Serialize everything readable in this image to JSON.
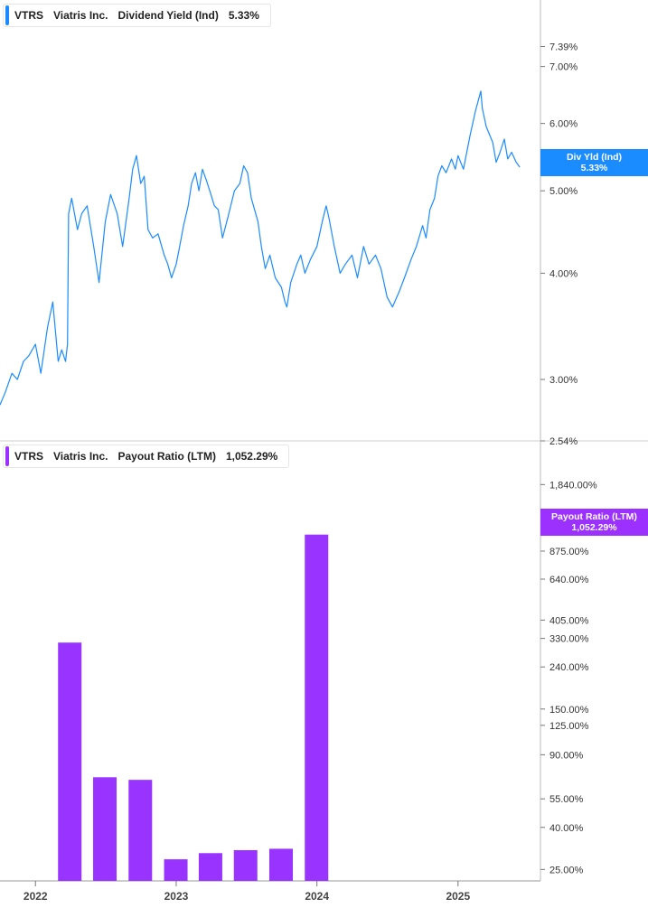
{
  "legend_top": {
    "ticker": "VTRS",
    "company": "Viatris Inc.",
    "metric": "Dividend Yield (Ind)",
    "value": "5.33%",
    "color": "#1a8cff"
  },
  "legend_bottom": {
    "ticker": "VTRS",
    "company": "Viatris Inc.",
    "metric": "Payout Ratio (LTM)",
    "value": "1,052.29%",
    "color": "#9b30ff"
  },
  "flag_top": {
    "label": "Div Yld (Ind)",
    "value": "5.33%"
  },
  "flag_bottom": {
    "label": "Payout Ratio (LTM)",
    "value": "1,052.29%"
  },
  "chart_data": [
    {
      "type": "line",
      "title": "VTRS Viatris Inc. Dividend Yield (Ind)",
      "scale": "log",
      "ylim": [
        2.54,
        8.3
      ],
      "yticks": [
        "7.39%",
        "7.00%",
        "6.00%",
        "5.00%",
        "4.00%",
        "3.00%",
        "2.54%"
      ],
      "ytick_values": [
        7.39,
        7.0,
        6.0,
        5.0,
        4.0,
        3.0,
        2.54
      ],
      "x_ticks": [
        "2022",
        "2023",
        "2024",
        "2025"
      ],
      "series": [
        {
          "name": "Div Yld (Ind)",
          "color": "#1a8cff",
          "points": [
            [
              "2021-10-01",
              2.8
            ],
            [
              "2021-10-15",
              2.9
            ],
            [
              "2021-11-01",
              3.05
            ],
            [
              "2021-11-15",
              3.0
            ],
            [
              "2021-12-01",
              3.15
            ],
            [
              "2021-12-15",
              3.2
            ],
            [
              "2022-01-01",
              3.3
            ],
            [
              "2022-01-15",
              3.05
            ],
            [
              "2022-02-01",
              3.45
            ],
            [
              "2022-02-15",
              3.7
            ],
            [
              "2022-03-01",
              3.15
            ],
            [
              "2022-03-10",
              3.25
            ],
            [
              "2022-03-20",
              3.15
            ],
            [
              "2022-03-25",
              3.3
            ],
            [
              "2022-03-28",
              4.7
            ],
            [
              "2022-04-05",
              4.9
            ],
            [
              "2022-04-20",
              4.5
            ],
            [
              "2022-05-01",
              4.7
            ],
            [
              "2022-05-15",
              4.8
            ],
            [
              "2022-06-01",
              4.3
            ],
            [
              "2022-06-15",
              3.9
            ],
            [
              "2022-07-01",
              4.6
            ],
            [
              "2022-07-15",
              4.95
            ],
            [
              "2022-08-01",
              4.7
            ],
            [
              "2022-08-15",
              4.3
            ],
            [
              "2022-09-01",
              4.9
            ],
            [
              "2022-09-10",
              5.3
            ],
            [
              "2022-09-20",
              5.5
            ],
            [
              "2022-10-01",
              5.1
            ],
            [
              "2022-10-10",
              5.2
            ],
            [
              "2022-10-20",
              4.5
            ],
            [
              "2022-11-01",
              4.4
            ],
            [
              "2022-11-15",
              4.45
            ],
            [
              "2022-12-01",
              4.2
            ],
            [
              "2022-12-10",
              4.1
            ],
            [
              "2022-12-20",
              3.95
            ],
            [
              "2023-01-01",
              4.1
            ],
            [
              "2023-01-10",
              4.3
            ],
            [
              "2023-01-20",
              4.55
            ],
            [
              "2023-02-01",
              4.8
            ],
            [
              "2023-02-10",
              5.1
            ],
            [
              "2023-02-20",
              5.25
            ],
            [
              "2023-03-01",
              5.0
            ],
            [
              "2023-03-10",
              5.3
            ],
            [
              "2023-03-20",
              5.15
            ],
            [
              "2023-04-01",
              4.95
            ],
            [
              "2023-04-10",
              4.8
            ],
            [
              "2023-04-20",
              4.75
            ],
            [
              "2023-05-01",
              4.4
            ],
            [
              "2023-05-15",
              4.65
            ],
            [
              "2023-06-01",
              5.0
            ],
            [
              "2023-06-15",
              5.1
            ],
            [
              "2023-06-25",
              5.35
            ],
            [
              "2023-07-05",
              5.25
            ],
            [
              "2023-07-15",
              4.9
            ],
            [
              "2023-08-01",
              4.6
            ],
            [
              "2023-08-10",
              4.3
            ],
            [
              "2023-08-20",
              4.05
            ],
            [
              "2023-09-01",
              4.2
            ],
            [
              "2023-09-15",
              3.95
            ],
            [
              "2023-10-01",
              3.85
            ],
            [
              "2023-10-10",
              3.7
            ],
            [
              "2023-10-15",
              3.65
            ],
            [
              "2023-10-25",
              3.9
            ],
            [
              "2023-11-10",
              4.1
            ],
            [
              "2023-11-20",
              4.2
            ],
            [
              "2023-12-01",
              4.0
            ],
            [
              "2023-12-15",
              4.15
            ],
            [
              "2024-01-01",
              4.3
            ],
            [
              "2024-01-15",
              4.6
            ],
            [
              "2024-01-25",
              4.8
            ],
            [
              "2024-02-01",
              4.65
            ],
            [
              "2024-02-15",
              4.3
            ],
            [
              "2024-03-01",
              4.0
            ],
            [
              "2024-03-15",
              4.1
            ],
            [
              "2024-04-01",
              4.2
            ],
            [
              "2024-04-15",
              3.95
            ],
            [
              "2024-05-01",
              4.3
            ],
            [
              "2024-05-15",
              4.1
            ],
            [
              "2024-06-01",
              4.2
            ],
            [
              "2024-06-15",
              4.05
            ],
            [
              "2024-07-01",
              3.75
            ],
            [
              "2024-07-15",
              3.65
            ],
            [
              "2024-08-01",
              3.8
            ],
            [
              "2024-08-15",
              3.95
            ],
            [
              "2024-09-01",
              4.15
            ],
            [
              "2024-09-15",
              4.3
            ],
            [
              "2024-10-01",
              4.55
            ],
            [
              "2024-10-10",
              4.4
            ],
            [
              "2024-10-20",
              4.75
            ],
            [
              "2024-11-01",
              4.9
            ],
            [
              "2024-11-10",
              5.2
            ],
            [
              "2024-11-20",
              5.35
            ],
            [
              "2024-12-01",
              5.25
            ],
            [
              "2024-12-15",
              5.45
            ],
            [
              "2024-12-25",
              5.3
            ],
            [
              "2025-01-01",
              5.5
            ],
            [
              "2025-01-15",
              5.3
            ],
            [
              "2025-02-01",
              5.8
            ],
            [
              "2025-02-15",
              6.2
            ],
            [
              "2025-03-01",
              6.55
            ],
            [
              "2025-03-05",
              6.25
            ],
            [
              "2025-03-15",
              5.95
            ],
            [
              "2025-04-01",
              5.7
            ],
            [
              "2025-04-10",
              5.4
            ],
            [
              "2025-04-20",
              5.55
            ],
            [
              "2025-05-01",
              5.75
            ],
            [
              "2025-05-10",
              5.45
            ],
            [
              "2025-05-20",
              5.55
            ],
            [
              "2025-06-01",
              5.4
            ],
            [
              "2025-06-10",
              5.33
            ]
          ]
        }
      ]
    },
    {
      "type": "bar",
      "title": "VTRS Viatris Inc. Payout Ratio (LTM)",
      "scale": "log",
      "ylim": [
        22.0,
        2400.0
      ],
      "yticks": [
        "1,840.00%",
        "875.00%",
        "640.00%",
        "405.00%",
        "330.00%",
        "240.00%",
        "150.00%",
        "125.00%",
        "90.00%",
        "55.00%",
        "40.00%",
        "25.00%"
      ],
      "ytick_values": [
        1840,
        875,
        640,
        405,
        330,
        240,
        150,
        125,
        90,
        55,
        40,
        25
      ],
      "x_ticks": [
        "2022",
        "2023",
        "2024",
        "2025"
      ],
      "series": [
        {
          "name": "Payout Ratio (LTM)",
          "color": "#9933ff",
          "points": [
            [
              "2022-03-31",
              315
            ],
            [
              "2022-06-30",
              70
            ],
            [
              "2022-09-30",
              68
            ],
            [
              "2022-12-31",
              28
            ],
            [
              "2023-03-31",
              30
            ],
            [
              "2023-06-30",
              31
            ],
            [
              "2023-09-30",
              31.5
            ],
            [
              "2023-12-31",
              1052.29
            ]
          ]
        }
      ]
    }
  ]
}
